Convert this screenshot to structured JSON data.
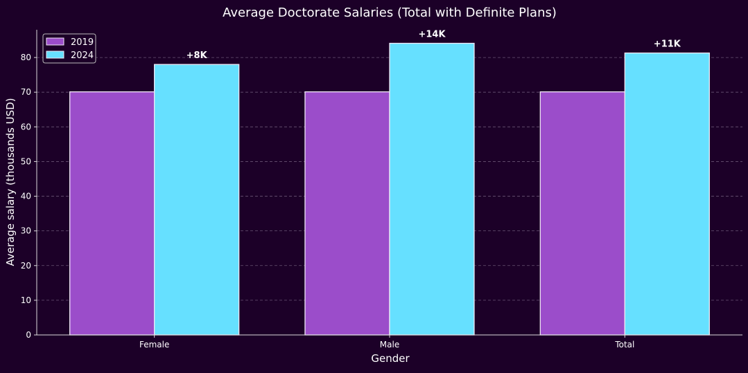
{
  "chart_data": {
    "type": "bar",
    "title": "Average Doctorate Salaries (Total with Definite Plans)",
    "xlabel": "Gender",
    "ylabel": "Average salary (thousands USD)",
    "categories": [
      "Female",
      "Male",
      "Total"
    ],
    "series": [
      {
        "name": "2019",
        "values": [
          70.1,
          70.1,
          70.1
        ],
        "color": "#9b4dca"
      },
      {
        "name": "2024",
        "values": [
          78.0,
          84.1,
          81.3
        ],
        "color": "#66e0ff"
      }
    ],
    "annotations": [
      "+8K",
      "+14K",
      "+11K"
    ],
    "ylim": [
      0,
      88
    ],
    "yticks": [
      0,
      10,
      20,
      30,
      40,
      50,
      60,
      70,
      80
    ],
    "grid": "y dashed",
    "legend": "top-left",
    "background": "#1c0028",
    "text_color": "#ffffff"
  }
}
